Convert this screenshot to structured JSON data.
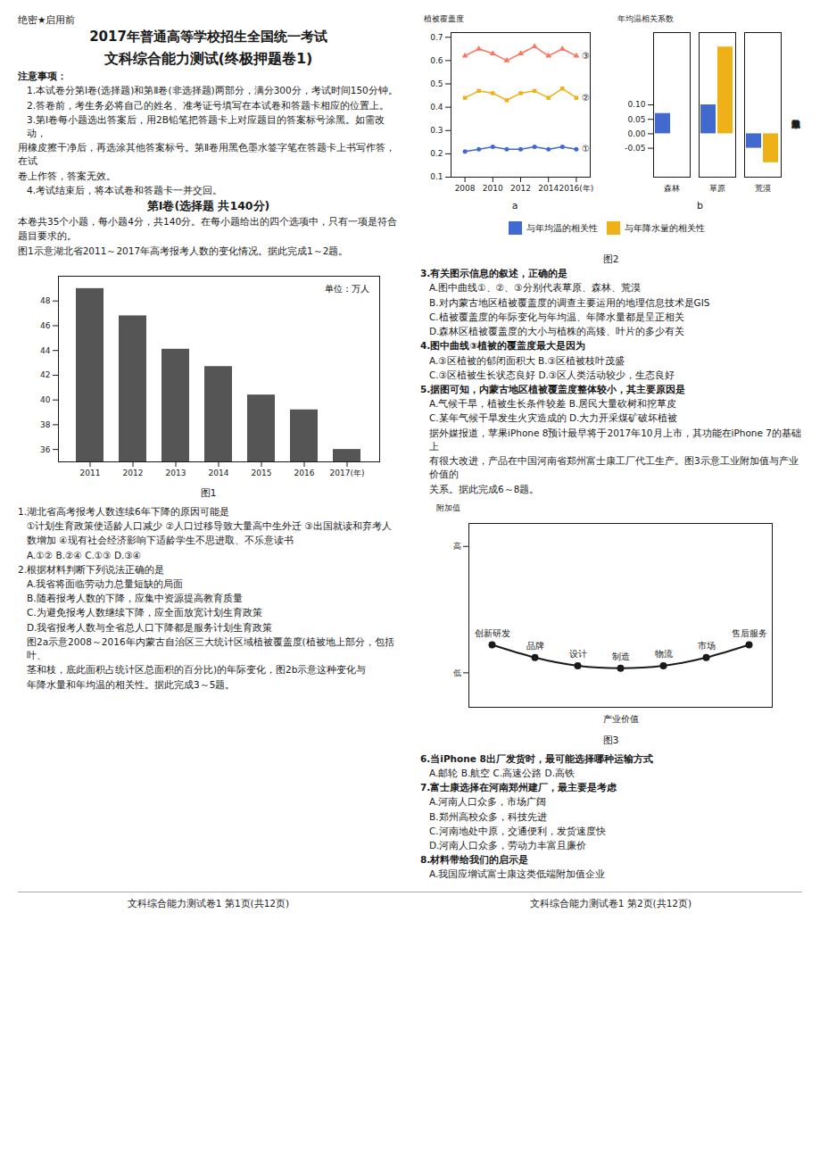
{
  "chart_data": [
    {
      "type": "bar",
      "title": "图1",
      "categories": [
        "2011",
        "2012",
        "2013",
        "2014",
        "2015",
        "2016",
        "2017(年)"
      ],
      "values": [
        49.0,
        46.8,
        44.1,
        42.7,
        40.4,
        39.2,
        36.0
      ],
      "color": "#555555",
      "ylim": [
        35,
        50
      ],
      "yticks": [
        36,
        38,
        40,
        42,
        44,
        46,
        48
      ],
      "annotations": [
        "单位：万人"
      ]
    },
    {
      "type": "line",
      "title": "a",
      "x": [
        2008,
        2009,
        2010,
        2011,
        2012,
        2013,
        2014,
        2015,
        2016
      ],
      "series": [
        {
          "name": "①",
          "marker": "circle",
          "values": [
            0.21,
            0.22,
            0.23,
            0.22,
            0.22,
            0.23,
            0.22,
            0.23,
            0.22
          ]
        },
        {
          "name": "②",
          "marker": "square",
          "values": [
            0.44,
            0.47,
            0.46,
            0.43,
            0.46,
            0.47,
            0.44,
            0.48,
            0.44
          ]
        },
        {
          "name": "③",
          "marker": "triangle",
          "values": [
            0.62,
            0.65,
            0.63,
            0.6,
            0.63,
            0.66,
            0.62,
            0.65,
            0.62
          ]
        }
      ],
      "xlim": [
        2007,
        2017
      ],
      "xticks": [
        2008,
        2010,
        2012,
        2014,
        {
          "value": 2016,
          "label": "2016(年)"
        }
      ],
      "ylim": [
        0.1,
        0.72
      ],
      "yticks": [
        0.1,
        0.2,
        0.3,
        0.4,
        0.5,
        0.6,
        0.7
      ],
      "ylabel": "植被覆盖度"
    },
    {
      "type": "bar",
      "title": "b",
      "categories": [
        "森林",
        "草原",
        "荒漠"
      ],
      "series": [
        {
          "name": "与年均温的相关性",
          "values": [
            0.07,
            0.1,
            -0.05
          ]
        },
        {
          "name": "与年降水量的相关性",
          "values": [
            0.0,
            0.3,
            -0.1
          ]
        }
      ],
      "ylim": [
        -0.15,
        0.35
      ],
      "yticks": [
        -0.05,
        {
          "value": 0,
          "label": "0.00"
        },
        0.05,
        {
          "value": 0.1,
          "label": "0.10"
        }
      ],
      "ylabel": "年均温相关系数",
      "y2label": "年降水量相关系数",
      "legend": "bottom"
    },
    {
      "type": "line",
      "title": "图3",
      "categories": [
        "创新研发",
        "品牌",
        "设计",
        "制造",
        "物流",
        "市场",
        "售后服务"
      ],
      "values": [
        0.121695,
        0.066255,
        0.03078,
        0.02,
        0.03078,
        0.066255,
        0.121695
      ],
      "marker": "circle",
      "ylim": [
        -0.15,
        0.65
      ],
      "yticks": [
        {
          "value": 0.55,
          "label": "高"
        },
        {
          "value": 0,
          "label": "低"
        }
      ],
      "ylabel": "附加值",
      "xlabel": "产业价值",
      "tick_labels": "y"
    }
  ],
  "annotations": [
    "绝密★启用前",
    "2017年普通高等学校招生全国统一考试",
    "文科综合能力测试(终极押题卷1)",
    "注意事项：",
    "1.本试卷分第Ⅰ卷(选择题)和第Ⅱ卷(非选择题)两部分，满分300分，考试时间150分钟。",
    "2.答卷前，考生务必将自己的姓名、准考证号填写在本试卷和答题卡相应的位置上。",
    "3.第Ⅰ卷每小题选出答案后，用2B铅笔把答题卡上对应题目的答案标号涂黑。如需改动，",
    "用橡皮擦干净后，再选涂其他答案标号。第Ⅱ卷用黑色墨水签字笔在答题卡上书写作答，在试",
    "卷上作答，答案无效。",
    "4.考试结束后，将本试卷和答题卡一并交回。",
    "第Ⅰ卷(选择题  共140分)",
    "本卷共35个小题，每小题4分，共140分。在每小题给出的四个选项中，只有一项是符合",
    "题目要求的。",
    "图1示意湖北省2011～2017年高考报考人数的变化情况。据此完成1～2题。",
    "1.湖北省高考报考人数连续6年下降的原因可能是",
    "①计划生育政策使适龄人口减少  ②人口过移导致大量高中生外迁  ③出国就读和弃考人",
    "数增加  ④现有社会经济影响下适龄学生不思进取、不乐意读书",
    "A.①②              B.②④              C.①③              D.③④",
    "2.根据材料判断下列说法正确的是",
    "A.我省将面临劳动力总量短缺的局面",
    "B.随着报考人数的下降，应集中资源提高教育质量",
    "C.为避免报考人数继续下降，应全面放宽计划生育政策",
    "D.我省报考人数与全省总人口下降都是服务计划生育政策",
    "图2a示意2008～2016年内蒙古自治区三大统计区域植被覆盖度(植被地上部分，包括叶、",
    "茎和枝，底此面积占统计区总面积的百分比)的年际变化，图2b示意这种变化与",
    "年降水量和年均温的相关性。据此完成3～5题。",
    "图2",
    "3.有关图示信息的叙述，正确的是",
    "A.图中曲线①、②、③分别代表草原、森林、荒漠",
    "B.对内蒙古地区植被覆盖度的调查主要运用的地理信息技术是GIS",
    "C.植被覆盖度的年际变化与年均温、年降水量都是呈正相关",
    "D.森林区植被覆盖度的大小与植株的高矮、叶片的多少有关",
    "4.图中曲线③植被的覆盖度最大是因为",
    "A.③区植被的郁闭面积大               B.③区植被枝叶茂盛",
    "C.③区植被生长状态良好               D.③区人类活动较少，生态良好",
    "5.据图可知，内蒙古地区植被覆盖度整体较小，其主要原因是",
    "A.气候干旱，植被生长条件较差          B.居民大量砍树和挖草皮",
    "C.某年气候干旱发生火灾造成的          D.大力开采煤矿破坏植被",
    "据外媒报道，苹果iPhone 8预计最早将于2017年10月上市，其功能在iPhone 7的基础上",
    "有很大改进，产品在中国河南省郑州富士康工厂代工生产。图3示意工业附加值与产业价值的",
    "关系。据此完成6～8题。",
    "6.当iPhone 8出厂发货时，最可能选择哪种运输方式",
    "A.邮轮          B.航空          C.高速公路          D.高铁",
    "7.富士康选择在河南郑州建厂，最主要是考虑",
    "A.河南人口众多，市场广阔",
    "B.郑州高校众多，科技先进",
    "C.河南地处中原，交通便利，发货速度快",
    "D.河南人口众多，劳动力丰富且廉价",
    "8.材料带给我们的启示是",
    "A.我国应增试富士康这类低端附加值企业",
    "文科综合能力测试卷1  第1页(共12页)",
    "文科综合能力测试卷1  第2页(共12页)"
  ]
}
